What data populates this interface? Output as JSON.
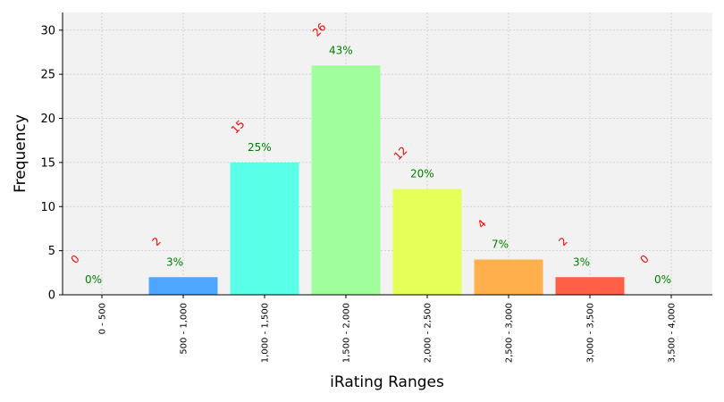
{
  "chart_data": {
    "type": "bar",
    "xlabel": "iRating Ranges",
    "ylabel": "Frequency",
    "ylim": [
      0,
      32
    ],
    "yticks": [
      0,
      5,
      10,
      15,
      20,
      25,
      30
    ],
    "grid": true,
    "categories": [
      "0 - 500",
      "500 - 1,000",
      "1,000 - 1,500",
      "1,500 - 2,000",
      "2,000 - 2,500",
      "2,500 - 3,000",
      "3,000 - 3,500",
      "3,500 - 4,000"
    ],
    "values": [
      0,
      2,
      15,
      26,
      12,
      4,
      2,
      0
    ],
    "count_labels": [
      "0",
      "2",
      "15",
      "26",
      "12",
      "4",
      "2",
      "0"
    ],
    "percent_labels": [
      "0%",
      "3%",
      "25%",
      "43%",
      "20%",
      "7%",
      "3%",
      "0%"
    ],
    "colors": [
      "#4da6ff",
      "#4da6ff",
      "#59ffe6",
      "#a0ff9c",
      "#e6ff59",
      "#ffb04d",
      "#ff5e47",
      "#ff5e47"
    ],
    "plot_background": "#f2f2f2"
  }
}
